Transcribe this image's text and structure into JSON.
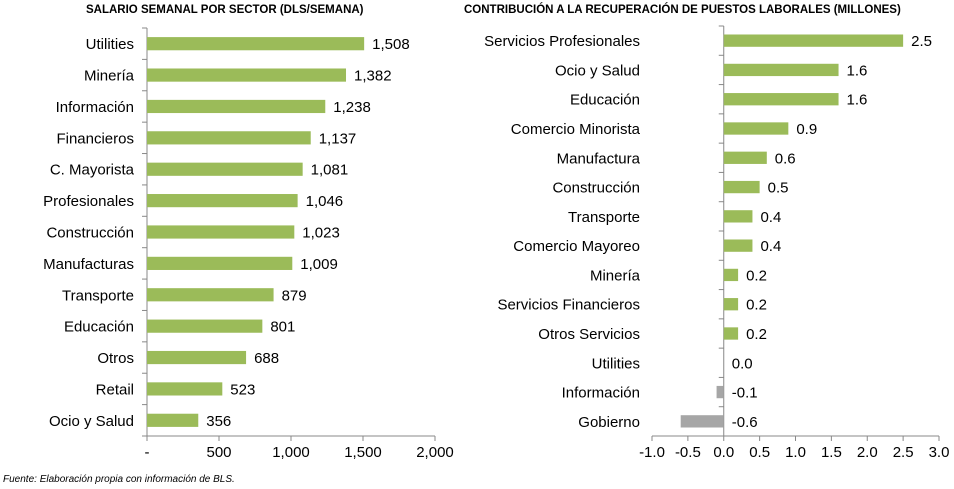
{
  "chart_data": [
    {
      "type": "bar",
      "orientation": "horizontal",
      "title": "SALARIO SEMANAL POR SECTOR  (DLS/SEMANA)",
      "categories": [
        "Utilities",
        "Minería",
        "Información",
        "Financieros",
        "C. Mayorista",
        "Profesionales",
        "Construcción",
        "Manufacturas",
        "Transporte",
        "Educación",
        "Otros",
        "Retail",
        "Ocio y Salud"
      ],
      "values": [
        1508,
        1382,
        1238,
        1137,
        1081,
        1046,
        1023,
        1009,
        879,
        801,
        688,
        523,
        356
      ],
      "value_labels": [
        "1,508",
        "1,382",
        "1,238",
        "1,137",
        "1,081",
        "1,046",
        "1,023",
        "1,009",
        "879",
        "801",
        "688",
        "523",
        "356"
      ],
      "xlim": [
        0,
        2000
      ],
      "ticks": [
        0,
        500,
        1000,
        1500,
        2000
      ],
      "tick_labels": [
        "-",
        "500",
        "1,000",
        "1,500",
        "2,000"
      ],
      "bar_color": "#9bbb59",
      "grid": false
    },
    {
      "type": "bar",
      "orientation": "horizontal",
      "title": "CONTRIBUCIÓN A LA RECUPERACIÓN DE PUESTOS LABORALES (MILLONES)",
      "categories": [
        "Servicios Profesionales",
        "Ocio y Salud",
        "Educación",
        "Comercio Minorista",
        "Manufactura",
        "Construcción",
        "Transporte",
        "Comercio Mayoreo",
        "Minería",
        "Servicios Financieros",
        "Otros Servicios",
        "Utilities",
        "Información",
        "Gobierno"
      ],
      "values": [
        2.5,
        1.6,
        1.6,
        0.9,
        0.6,
        0.5,
        0.4,
        0.4,
        0.2,
        0.2,
        0.2,
        0.0,
        -0.1,
        -0.6
      ],
      "value_labels": [
        "2.5",
        "1.6",
        "1.6",
        "0.9",
        "0.6",
        "0.5",
        "0.4",
        "0.4",
        "0.2",
        "0.2",
        "0.2",
        "0.0",
        "-0.1",
        "-0.6"
      ],
      "xlim": [
        -1.0,
        3.0
      ],
      "ticks": [
        -1.0,
        -0.5,
        0.0,
        0.5,
        1.0,
        1.5,
        2.0,
        2.5,
        3.0
      ],
      "tick_labels": [
        "-1.0",
        "-0.5",
        "0.0",
        "0.5",
        "1.0",
        "1.5",
        "2.0",
        "2.5",
        "3.0"
      ],
      "positive_color": "#9bbb59",
      "negative_color": "#a6a6a6",
      "grid": false
    }
  ],
  "footnote": "Fuente: Elaboración propia con información de BLS."
}
